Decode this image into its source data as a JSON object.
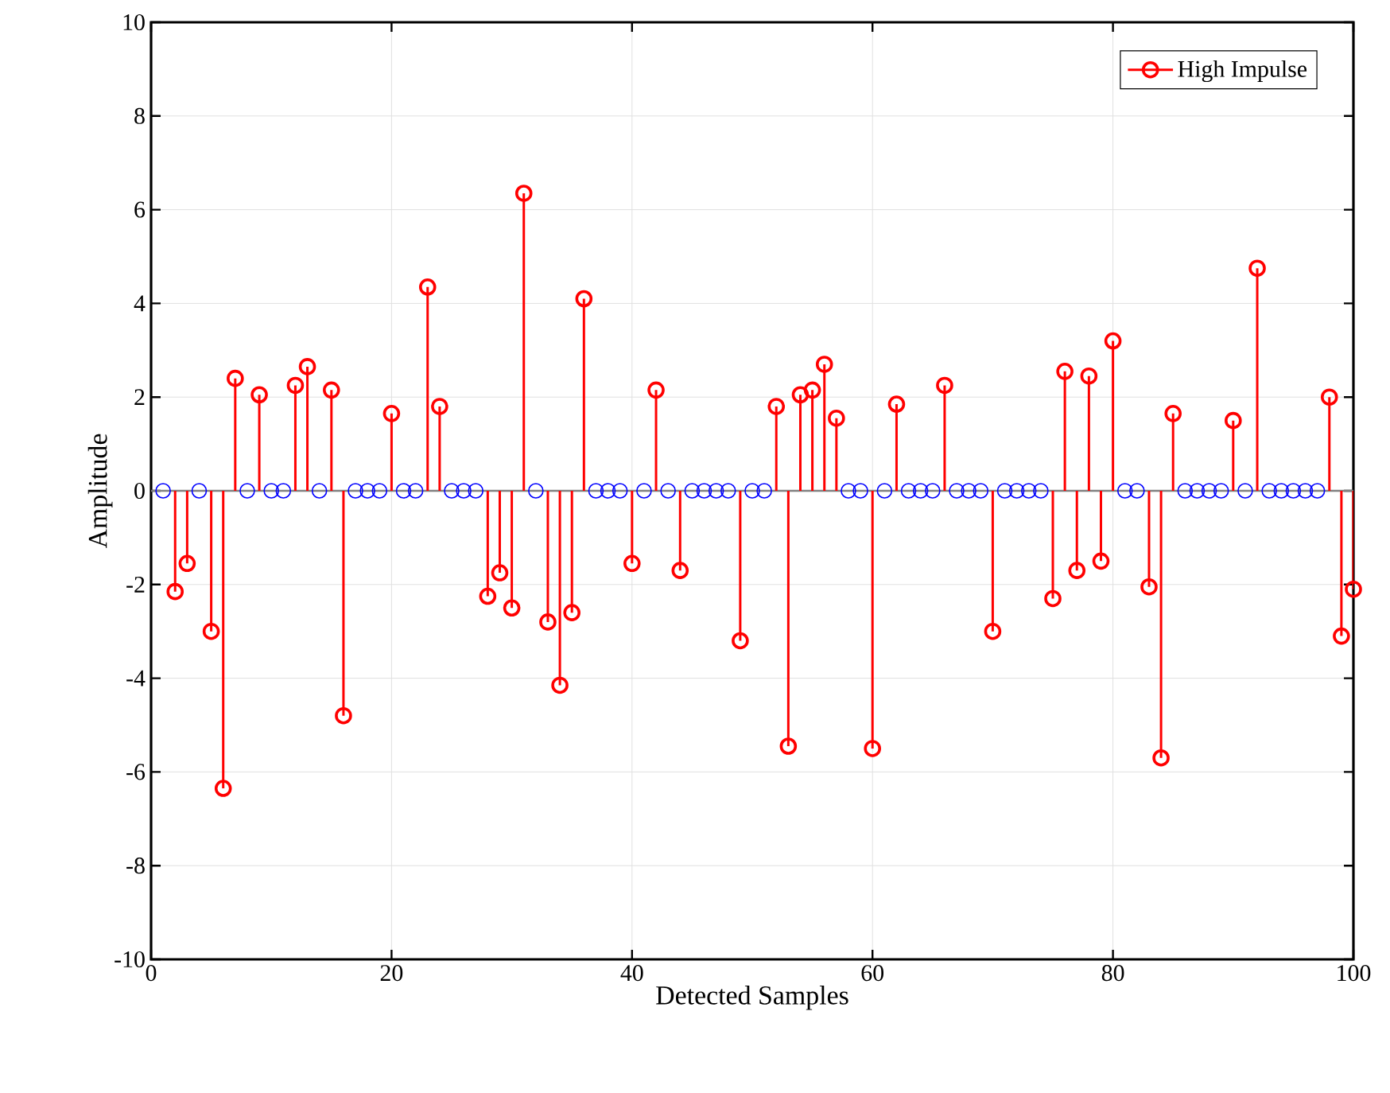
{
  "chart_data": {
    "type": "lollipop",
    "xlabel": "Detected Samples",
    "ylabel": "Amplitude",
    "x": [
      1,
      2,
      3,
      4,
      5,
      6,
      7,
      8,
      9,
      10,
      11,
      12,
      13,
      14,
      15,
      16,
      17,
      18,
      19,
      20,
      21,
      22,
      23,
      24,
      25,
      26,
      27,
      28,
      29,
      30,
      31,
      32,
      33,
      34,
      35,
      36,
      37,
      38,
      39,
      40,
      41,
      42,
      43,
      44,
      45,
      46,
      47,
      48,
      49,
      50,
      51,
      52,
      53,
      54,
      55,
      56,
      57,
      58,
      59,
      60,
      61,
      62,
      63,
      64,
      65,
      66,
      67,
      68,
      69,
      70,
      71,
      72,
      73,
      74,
      75,
      76,
      77,
      78,
      79,
      80,
      81,
      82,
      83,
      84,
      85,
      86,
      87,
      88,
      89,
      90,
      91,
      92,
      93,
      94,
      95,
      96,
      97,
      98,
      99,
      100
    ],
    "series": [
      {
        "name": "High Impulse",
        "color": "#ff0000",
        "values": [
          null,
          -2.15,
          -1.55,
          null,
          -3.0,
          -6.35,
          2.4,
          null,
          2.05,
          null,
          null,
          2.25,
          2.65,
          null,
          2.15,
          -4.8,
          null,
          null,
          null,
          1.65,
          null,
          null,
          4.35,
          1.8,
          null,
          null,
          null,
          -2.25,
          -1.75,
          -2.5,
          6.35,
          null,
          -2.8,
          -4.15,
          -2.6,
          4.1,
          null,
          null,
          null,
          -1.55,
          null,
          2.15,
          null,
          -1.7,
          null,
          null,
          null,
          null,
          -3.2,
          null,
          null,
          1.8,
          -5.45,
          2.05,
          2.15,
          2.7,
          1.55,
          null,
          null,
          -5.5,
          null,
          1.85,
          null,
          null,
          null,
          2.25,
          null,
          null,
          null,
          -3.0,
          null,
          null,
          null,
          null,
          -2.3,
          2.55,
          -1.7,
          2.45,
          -1.5,
          3.2,
          null,
          null,
          -2.05,
          -5.7,
          1.65,
          null,
          null,
          null,
          null,
          1.5,
          null,
          4.75,
          null,
          null,
          null,
          null,
          null,
          2.0,
          -3.1,
          -2.1
        ]
      },
      {
        "color": "#0000ff",
        "values": [
          0,
          null,
          null,
          0,
          null,
          null,
          null,
          0,
          null,
          0,
          0,
          null,
          null,
          0,
          null,
          null,
          0,
          0,
          0,
          null,
          0,
          0,
          null,
          null,
          0,
          0,
          0,
          null,
          null,
          null,
          null,
          0,
          null,
          null,
          null,
          null,
          0,
          0,
          0,
          null,
          0,
          null,
          0,
          null,
          0,
          0,
          0,
          0,
          null,
          0,
          0,
          null,
          null,
          null,
          null,
          null,
          null,
          0,
          0,
          null,
          0,
          null,
          0,
          0,
          0,
          null,
          0,
          0,
          0,
          null,
          0,
          0,
          0,
          0,
          null,
          null,
          null,
          null,
          null,
          null,
          0,
          0,
          null,
          null,
          null,
          0,
          0,
          0,
          0,
          null,
          0,
          null,
          0,
          0,
          0,
          0,
          0,
          null,
          null,
          null
        ]
      }
    ],
    "xlim": [
      0,
      100
    ],
    "xticks": [
      0,
      20,
      40,
      60,
      80,
      100
    ],
    "ylim": [
      -10,
      10
    ],
    "yticks": [
      -10,
      -8,
      -6,
      -4,
      -2,
      0,
      2,
      4,
      6,
      8,
      10
    ],
    "ref_lines": [
      {
        "axis": "y",
        "value": 0,
        "color": "#808080"
      }
    ],
    "grid": true,
    "legend": "top right",
    "marker": "circle"
  }
}
